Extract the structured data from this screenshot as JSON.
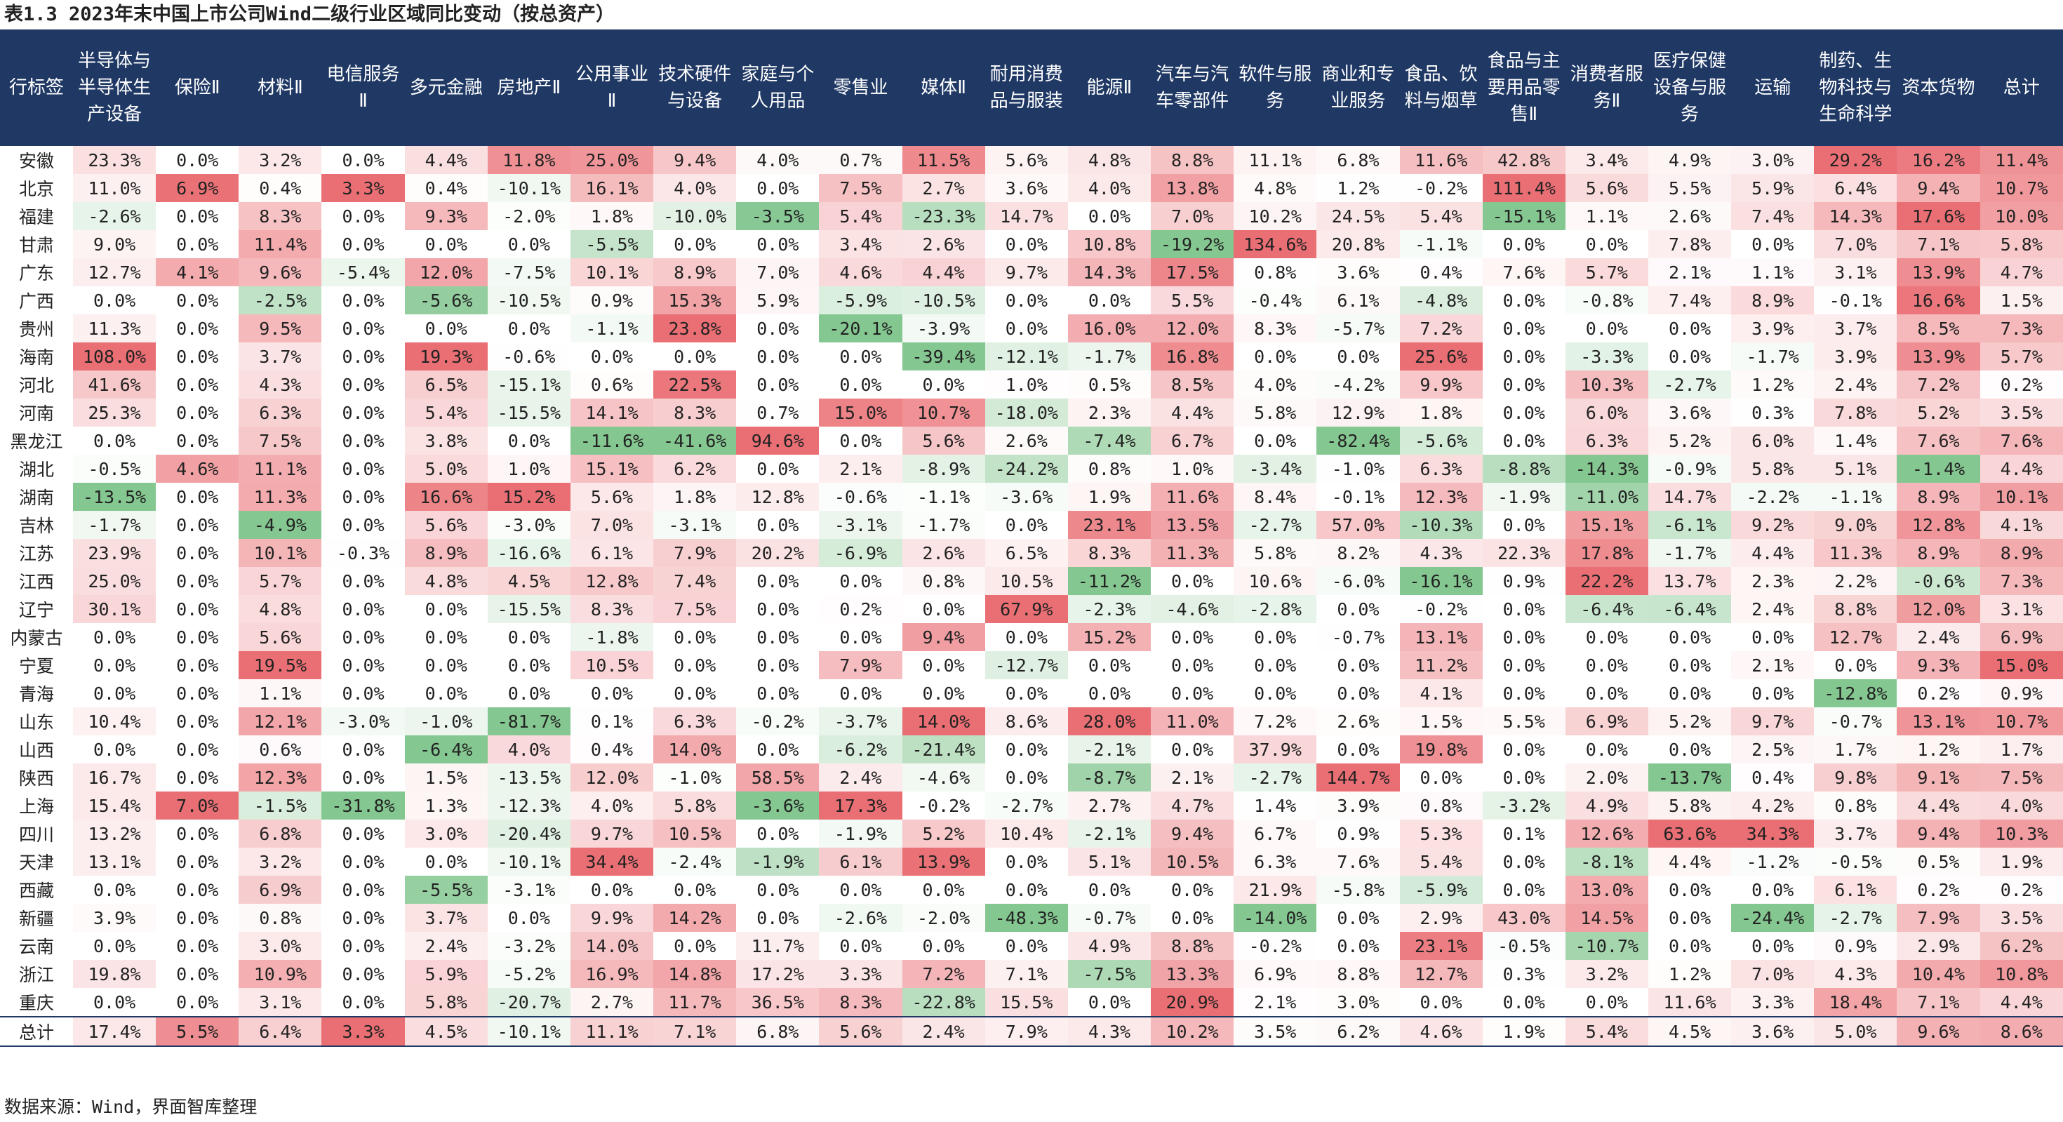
{
  "title": "表1.3 2023年末中国上市公司Wind二级行业区域同比变动（按总资产）",
  "source": "数据来源：Wind，界面智库整理",
  "colors": {
    "header_bg": "#1f3864",
    "header_text": "#ffffff",
    "positive": "#e0595f",
    "negative": "#5cb46c"
  },
  "columns": [
    "行标签",
    "半导体与半导体生产设备",
    "保险Ⅱ",
    "材料Ⅱ",
    "电信服务Ⅱ",
    "多元金融",
    "房地产Ⅱ",
    "公用事业Ⅱ",
    "技术硬件与设备",
    "家庭与个人用品",
    "零售业",
    "媒体Ⅱ",
    "耐用消费品与服装",
    "能源Ⅱ",
    "汽车与汽车零部件",
    "软件与服务",
    "商业和专业服务",
    "食品、饮料与烟草",
    "食品与主要用品零售Ⅱ",
    "消费者服务Ⅱ",
    "医疗保健设备与服务",
    "运输",
    "制药、生物科技与生命科学",
    "资本货物",
    "总计"
  ],
  "rows": [
    {
      "label": "安徽",
      "values": [
        "23.3%",
        "0.0%",
        "3.2%",
        "0.0%",
        "4.4%",
        "11.8%",
        "25.0%",
        "9.4%",
        "4.0%",
        "0.7%",
        "11.5%",
        "5.6%",
        "4.8%",
        "8.8%",
        "11.1%",
        "6.8%",
        "11.6%",
        "42.8%",
        "3.4%",
        "4.9%",
        "3.0%",
        "29.2%",
        "16.2%",
        "11.4%"
      ]
    },
    {
      "label": "北京",
      "values": [
        "11.0%",
        "6.9%",
        "0.4%",
        "3.3%",
        "0.4%",
        "-10.1%",
        "16.1%",
        "4.0%",
        "0.0%",
        "7.5%",
        "2.7%",
        "3.6%",
        "4.0%",
        "13.8%",
        "4.8%",
        "1.2%",
        "-0.2%",
        "111.4%",
        "5.6%",
        "5.5%",
        "5.9%",
        "6.4%",
        "9.4%",
        "10.7%"
      ]
    },
    {
      "label": "福建",
      "values": [
        "-2.6%",
        "0.0%",
        "8.3%",
        "0.0%",
        "9.3%",
        "-2.0%",
        "1.8%",
        "-10.0%",
        "-3.5%",
        "5.4%",
        "-23.3%",
        "14.7%",
        "0.0%",
        "7.0%",
        "10.2%",
        "24.5%",
        "5.4%",
        "-15.1%",
        "1.1%",
        "2.6%",
        "7.4%",
        "14.3%",
        "17.6%",
        "10.0%"
      ]
    },
    {
      "label": "甘肃",
      "values": [
        "9.0%",
        "0.0%",
        "11.4%",
        "0.0%",
        "0.0%",
        "0.0%",
        "-5.5%",
        "0.0%",
        "0.0%",
        "3.4%",
        "2.6%",
        "0.0%",
        "10.8%",
        "-19.2%",
        "134.6%",
        "20.8%",
        "-1.1%",
        "0.0%",
        "0.0%",
        "7.8%",
        "0.0%",
        "7.0%",
        "7.1%",
        "5.8%"
      ]
    },
    {
      "label": "广东",
      "values": [
        "12.7%",
        "4.1%",
        "9.6%",
        "-5.4%",
        "12.0%",
        "-7.5%",
        "10.1%",
        "8.9%",
        "7.0%",
        "4.6%",
        "4.4%",
        "9.7%",
        "14.3%",
        "17.5%",
        "0.8%",
        "3.6%",
        "0.4%",
        "7.6%",
        "5.7%",
        "2.1%",
        "1.1%",
        "3.1%",
        "13.9%",
        "4.7%"
      ]
    },
    {
      "label": "广西",
      "values": [
        "0.0%",
        "0.0%",
        "-2.5%",
        "0.0%",
        "-5.6%",
        "-10.5%",
        "0.9%",
        "15.3%",
        "5.9%",
        "-5.9%",
        "-10.5%",
        "0.0%",
        "0.0%",
        "5.5%",
        "-0.4%",
        "6.1%",
        "-4.8%",
        "0.0%",
        "-0.8%",
        "7.4%",
        "8.9%",
        "-0.1%",
        "16.6%",
        "1.5%"
      ]
    },
    {
      "label": "贵州",
      "values": [
        "11.3%",
        "0.0%",
        "9.5%",
        "0.0%",
        "0.0%",
        "0.0%",
        "-1.1%",
        "23.8%",
        "0.0%",
        "-20.1%",
        "-3.9%",
        "0.0%",
        "16.0%",
        "12.0%",
        "8.3%",
        "-5.7%",
        "7.2%",
        "0.0%",
        "0.0%",
        "0.0%",
        "3.9%",
        "3.7%",
        "8.5%",
        "7.3%"
      ]
    },
    {
      "label": "海南",
      "values": [
        "108.0%",
        "0.0%",
        "3.7%",
        "0.0%",
        "19.3%",
        "-0.6%",
        "0.0%",
        "0.0%",
        "0.0%",
        "0.0%",
        "-39.4%",
        "-12.1%",
        "-1.7%",
        "16.8%",
        "0.0%",
        "0.0%",
        "25.6%",
        "0.0%",
        "-3.3%",
        "0.0%",
        "-1.7%",
        "3.9%",
        "13.9%",
        "5.7%"
      ]
    },
    {
      "label": "河北",
      "values": [
        "41.6%",
        "0.0%",
        "4.3%",
        "0.0%",
        "6.5%",
        "-15.1%",
        "0.6%",
        "22.5%",
        "0.0%",
        "0.0%",
        "0.0%",
        "1.0%",
        "0.5%",
        "8.5%",
        "4.0%",
        "-4.2%",
        "9.9%",
        "0.0%",
        "10.3%",
        "-2.7%",
        "1.2%",
        "2.4%",
        "7.2%",
        "0.2%"
      ]
    },
    {
      "label": "河南",
      "values": [
        "25.3%",
        "0.0%",
        "6.3%",
        "0.0%",
        "5.4%",
        "-15.5%",
        "14.1%",
        "8.3%",
        "0.7%",
        "15.0%",
        "10.7%",
        "-18.0%",
        "2.3%",
        "4.4%",
        "5.8%",
        "12.9%",
        "1.8%",
        "0.0%",
        "6.0%",
        "3.6%",
        "0.3%",
        "7.8%",
        "5.2%",
        "3.5%"
      ]
    },
    {
      "label": "黑龙江",
      "values": [
        "0.0%",
        "0.0%",
        "7.5%",
        "0.0%",
        "3.8%",
        "0.0%",
        "-11.6%",
        "-41.6%",
        "94.6%",
        "0.0%",
        "5.6%",
        "2.6%",
        "-7.4%",
        "6.7%",
        "0.0%",
        "-82.4%",
        "-5.6%",
        "0.0%",
        "6.3%",
        "5.2%",
        "6.0%",
        "1.4%",
        "7.6%",
        "7.6%"
      ]
    },
    {
      "label": "湖北",
      "values": [
        "-0.5%",
        "4.6%",
        "11.1%",
        "0.0%",
        "5.0%",
        "1.0%",
        "15.1%",
        "6.2%",
        "0.0%",
        "2.1%",
        "-8.9%",
        "-24.2%",
        "0.8%",
        "1.0%",
        "-3.4%",
        "-1.0%",
        "6.3%",
        "-8.8%",
        "-14.3%",
        "-0.9%",
        "5.8%",
        "5.1%",
        "-1.4%",
        "4.4%"
      ]
    },
    {
      "label": "湖南",
      "values": [
        "-13.5%",
        "0.0%",
        "11.3%",
        "0.0%",
        "16.6%",
        "15.2%",
        "5.6%",
        "1.8%",
        "12.8%",
        "-0.6%",
        "-1.1%",
        "-3.6%",
        "1.9%",
        "11.6%",
        "8.4%",
        "-0.1%",
        "12.3%",
        "-1.9%",
        "-11.0%",
        "14.7%",
        "-2.2%",
        "-1.1%",
        "8.9%",
        "10.1%"
      ]
    },
    {
      "label": "吉林",
      "values": [
        "-1.7%",
        "0.0%",
        "-4.9%",
        "0.0%",
        "5.6%",
        "-3.0%",
        "7.0%",
        "-3.1%",
        "0.0%",
        "-3.1%",
        "-1.7%",
        "0.0%",
        "23.1%",
        "13.5%",
        "-2.7%",
        "57.0%",
        "-10.3%",
        "0.0%",
        "15.1%",
        "-6.1%",
        "9.2%",
        "9.0%",
        "12.8%",
        "4.1%"
      ]
    },
    {
      "label": "江苏",
      "values": [
        "23.9%",
        "0.0%",
        "10.1%",
        "-0.3%",
        "8.9%",
        "-16.6%",
        "6.1%",
        "7.9%",
        "20.2%",
        "-6.9%",
        "2.6%",
        "6.5%",
        "8.3%",
        "11.3%",
        "5.8%",
        "8.2%",
        "4.3%",
        "22.3%",
        "17.8%",
        "-1.7%",
        "4.4%",
        "11.3%",
        "8.9%",
        "8.9%"
      ]
    },
    {
      "label": "江西",
      "values": [
        "25.0%",
        "0.0%",
        "5.7%",
        "0.0%",
        "4.8%",
        "4.5%",
        "12.8%",
        "7.4%",
        "0.0%",
        "0.0%",
        "0.8%",
        "10.5%",
        "-11.2%",
        "0.0%",
        "10.6%",
        "-6.0%",
        "-16.1%",
        "0.9%",
        "22.2%",
        "13.7%",
        "2.3%",
        "2.2%",
        "-0.6%",
        "7.3%"
      ]
    },
    {
      "label": "辽宁",
      "values": [
        "30.1%",
        "0.0%",
        "4.8%",
        "0.0%",
        "0.0%",
        "-15.5%",
        "8.3%",
        "7.5%",
        "0.0%",
        "0.2%",
        "0.0%",
        "67.9%",
        "-2.3%",
        "-4.6%",
        "-2.8%",
        "0.0%",
        "-0.2%",
        "0.0%",
        "-6.4%",
        "-6.4%",
        "2.4%",
        "8.8%",
        "12.0%",
        "3.1%"
      ]
    },
    {
      "label": "内蒙古",
      "values": [
        "0.0%",
        "0.0%",
        "5.6%",
        "0.0%",
        "0.0%",
        "0.0%",
        "-1.8%",
        "0.0%",
        "0.0%",
        "0.0%",
        "9.4%",
        "0.0%",
        "15.2%",
        "0.0%",
        "0.0%",
        "-0.7%",
        "13.1%",
        "0.0%",
        "0.0%",
        "0.0%",
        "0.0%",
        "12.7%",
        "2.4%",
        "6.9%"
      ]
    },
    {
      "label": "宁夏",
      "values": [
        "0.0%",
        "0.0%",
        "19.5%",
        "0.0%",
        "0.0%",
        "0.0%",
        "10.5%",
        "0.0%",
        "0.0%",
        "7.9%",
        "0.0%",
        "-12.7%",
        "0.0%",
        "0.0%",
        "0.0%",
        "0.0%",
        "11.2%",
        "0.0%",
        "0.0%",
        "0.0%",
        "2.1%",
        "0.0%",
        "9.3%",
        "15.0%"
      ]
    },
    {
      "label": "青海",
      "values": [
        "0.0%",
        "0.0%",
        "1.1%",
        "0.0%",
        "0.0%",
        "0.0%",
        "0.0%",
        "0.0%",
        "0.0%",
        "0.0%",
        "0.0%",
        "0.0%",
        "0.0%",
        "0.0%",
        "0.0%",
        "0.0%",
        "4.1%",
        "0.0%",
        "0.0%",
        "0.0%",
        "0.0%",
        "-12.8%",
        "0.2%",
        "0.9%"
      ]
    },
    {
      "label": "山东",
      "values": [
        "10.4%",
        "0.0%",
        "12.1%",
        "-3.0%",
        "-1.0%",
        "-81.7%",
        "0.1%",
        "6.3%",
        "-0.2%",
        "-3.7%",
        "14.0%",
        "8.6%",
        "28.0%",
        "11.0%",
        "7.2%",
        "2.6%",
        "1.5%",
        "5.5%",
        "6.9%",
        "5.2%",
        "9.7%",
        "-0.7%",
        "13.1%",
        "10.7%"
      ]
    },
    {
      "label": "山西",
      "values": [
        "0.0%",
        "0.0%",
        "0.6%",
        "0.0%",
        "-6.4%",
        "4.0%",
        "0.4%",
        "14.0%",
        "0.0%",
        "-6.2%",
        "-21.4%",
        "0.0%",
        "-2.1%",
        "0.0%",
        "37.9%",
        "0.0%",
        "19.8%",
        "0.0%",
        "0.0%",
        "0.0%",
        "2.5%",
        "1.7%",
        "1.2%",
        "1.7%"
      ]
    },
    {
      "label": "陕西",
      "values": [
        "16.7%",
        "0.0%",
        "12.3%",
        "0.0%",
        "1.5%",
        "-13.5%",
        "12.0%",
        "-1.0%",
        "58.5%",
        "2.4%",
        "-4.6%",
        "0.0%",
        "-8.7%",
        "2.1%",
        "-2.7%",
        "144.7%",
        "0.0%",
        "0.0%",
        "2.0%",
        "-13.7%",
        "0.4%",
        "9.8%",
        "9.1%",
        "7.5%"
      ]
    },
    {
      "label": "上海",
      "values": [
        "15.4%",
        "7.0%",
        "-1.5%",
        "-31.8%",
        "1.3%",
        "-12.3%",
        "4.0%",
        "5.8%",
        "-3.6%",
        "17.3%",
        "-0.2%",
        "-2.7%",
        "2.7%",
        "4.7%",
        "1.4%",
        "3.9%",
        "0.8%",
        "-3.2%",
        "4.9%",
        "5.8%",
        "4.2%",
        "0.8%",
        "4.4%",
        "4.0%"
      ]
    },
    {
      "label": "四川",
      "values": [
        "13.2%",
        "0.0%",
        "6.8%",
        "0.0%",
        "3.0%",
        "-20.4%",
        "9.7%",
        "10.5%",
        "0.0%",
        "-1.9%",
        "5.2%",
        "10.4%",
        "-2.1%",
        "9.4%",
        "6.7%",
        "0.9%",
        "5.3%",
        "0.1%",
        "12.6%",
        "63.6%",
        "34.3%",
        "3.7%",
        "9.4%",
        "10.3%"
      ]
    },
    {
      "label": "天津",
      "values": [
        "13.1%",
        "0.0%",
        "3.2%",
        "0.0%",
        "0.0%",
        "-10.1%",
        "34.4%",
        "-2.4%",
        "-1.9%",
        "6.1%",
        "13.9%",
        "0.0%",
        "5.1%",
        "10.5%",
        "6.3%",
        "7.6%",
        "5.4%",
        "0.0%",
        "-8.1%",
        "4.4%",
        "-1.2%",
        "-0.5%",
        "0.5%",
        "1.9%"
      ]
    },
    {
      "label": "西藏",
      "values": [
        "0.0%",
        "0.0%",
        "6.9%",
        "0.0%",
        "-5.5%",
        "-3.1%",
        "0.0%",
        "0.0%",
        "0.0%",
        "0.0%",
        "0.0%",
        "0.0%",
        "0.0%",
        "0.0%",
        "21.9%",
        "-5.8%",
        "-5.9%",
        "0.0%",
        "13.0%",
        "0.0%",
        "0.0%",
        "6.1%",
        "0.2%",
        "0.2%"
      ]
    },
    {
      "label": "新疆",
      "values": [
        "3.9%",
        "0.0%",
        "0.8%",
        "0.0%",
        "3.7%",
        "0.0%",
        "9.9%",
        "14.2%",
        "0.0%",
        "-2.6%",
        "-2.0%",
        "-48.3%",
        "-0.7%",
        "0.0%",
        "-14.0%",
        "0.0%",
        "2.9%",
        "43.0%",
        "14.5%",
        "0.0%",
        "-24.4%",
        "-2.7%",
        "7.9%",
        "3.5%"
      ]
    },
    {
      "label": "云南",
      "values": [
        "0.0%",
        "0.0%",
        "3.0%",
        "0.0%",
        "2.4%",
        "-3.2%",
        "14.0%",
        "0.0%",
        "11.7%",
        "0.0%",
        "0.0%",
        "0.0%",
        "4.9%",
        "8.8%",
        "-0.2%",
        "0.0%",
        "23.1%",
        "-0.5%",
        "-10.7%",
        "0.0%",
        "0.0%",
        "0.9%",
        "2.9%",
        "6.2%"
      ]
    },
    {
      "label": "浙江",
      "values": [
        "19.8%",
        "0.0%",
        "10.9%",
        "0.0%",
        "5.9%",
        "-5.2%",
        "16.9%",
        "14.8%",
        "17.2%",
        "3.3%",
        "7.2%",
        "7.1%",
        "-7.5%",
        "13.3%",
        "6.9%",
        "8.8%",
        "12.7%",
        "0.3%",
        "3.2%",
        "1.2%",
        "7.0%",
        "4.3%",
        "10.4%",
        "10.8%"
      ]
    },
    {
      "label": "重庆",
      "values": [
        "0.0%",
        "0.0%",
        "3.1%",
        "0.0%",
        "5.8%",
        "-20.7%",
        "2.7%",
        "11.7%",
        "36.5%",
        "8.3%",
        "-22.8%",
        "15.5%",
        "0.0%",
        "20.9%",
        "2.1%",
        "3.0%",
        "0.0%",
        "0.0%",
        "0.0%",
        "11.6%",
        "3.3%",
        "18.4%",
        "7.1%",
        "4.4%"
      ]
    },
    {
      "label": "总计",
      "values": [
        "17.4%",
        "5.5%",
        "6.4%",
        "3.3%",
        "4.5%",
        "-10.1%",
        "11.1%",
        "7.1%",
        "6.8%",
        "5.6%",
        "2.4%",
        "7.9%",
        "4.3%",
        "10.2%",
        "3.5%",
        "6.2%",
        "4.6%",
        "1.9%",
        "5.4%",
        "4.5%",
        "3.6%",
        "5.0%",
        "9.6%",
        "8.6%"
      ]
    }
  ]
}
